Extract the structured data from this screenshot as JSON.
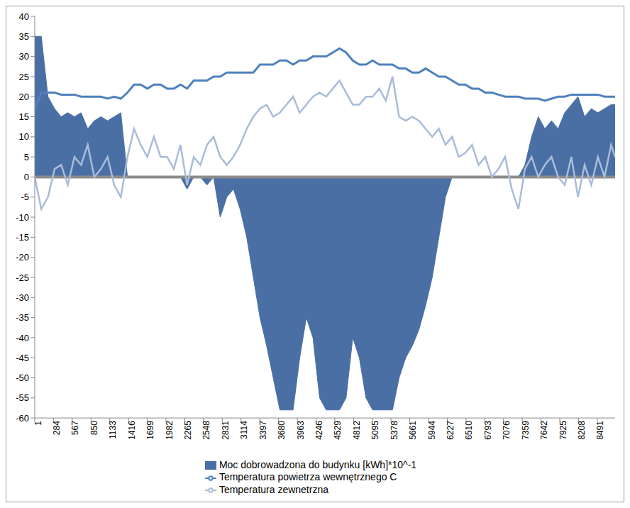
{
  "chart_data": {
    "type": "line",
    "grid": false,
    "legend": "bottom",
    "xlim": [
      1,
      8760
    ],
    "xticks": [
      1,
      284,
      567,
      850,
      1133,
      1416,
      1699,
      1982,
      2265,
      2548,
      2831,
      3114,
      3397,
      3680,
      3963,
      4246,
      4529,
      4812,
      5095,
      5378,
      5661,
      5944,
      6227,
      6510,
      6793,
      7076,
      7359,
      7642,
      7925,
      8208,
      8491
    ],
    "ylim": [
      -60,
      40
    ],
    "yticks": [
      -60,
      -55,
      -50,
      -45,
      -40,
      -35,
      -30,
      -25,
      -20,
      -15,
      -10,
      -5,
      0,
      5,
      10,
      15,
      20,
      25,
      30,
      35,
      40
    ],
    "x": [
      1,
      100,
      200,
      300,
      400,
      500,
      600,
      700,
      800,
      900,
      1000,
      1100,
      1200,
      1300,
      1400,
      1500,
      1600,
      1700,
      1800,
      1900,
      2000,
      2100,
      2200,
      2300,
      2400,
      2500,
      2600,
      2700,
      2800,
      2900,
      3000,
      3100,
      3200,
      3300,
      3400,
      3500,
      3600,
      3700,
      3800,
      3900,
      4000,
      4100,
      4200,
      4300,
      4400,
      4500,
      4600,
      4700,
      4800,
      4900,
      5000,
      5100,
      5200,
      5300,
      5400,
      5500,
      5600,
      5700,
      5800,
      5900,
      6000,
      6100,
      6200,
      6300,
      6400,
      6500,
      6600,
      6700,
      6800,
      6900,
      7000,
      7100,
      7200,
      7300,
      7400,
      7500,
      7600,
      7700,
      7800,
      7900,
      8000,
      8100,
      8200,
      8300,
      8400,
      8500,
      8600,
      8700,
      8760
    ],
    "series": [
      {
        "name": "Moc dobrowadzona do budynku [kWh]*10^-1",
        "type": "area",
        "color": "#4a6fa5",
        "values": [
          35,
          35,
          20,
          17,
          15,
          16,
          15,
          16,
          12,
          14,
          15,
          14,
          15,
          16,
          0,
          0,
          0,
          0,
          0,
          0,
          0,
          0,
          0,
          -3,
          0,
          0,
          -2,
          0,
          -10,
          -5,
          -3,
          -8,
          -15,
          -25,
          -35,
          -42,
          -50,
          -58,
          -58,
          -58,
          -45,
          -35,
          -40,
          -55,
          -58,
          -58,
          -58,
          -55,
          -40,
          -45,
          -55,
          -58,
          -58,
          -58,
          -58,
          -50,
          -45,
          -42,
          -38,
          -32,
          -25,
          -15,
          -5,
          0,
          0,
          0,
          0,
          0,
          0,
          0,
          0,
          0,
          0,
          0,
          3,
          10,
          15,
          12,
          14,
          12,
          16,
          18,
          20,
          15,
          17,
          16,
          17,
          18,
          18
        ]
      },
      {
        "name": "Temperatura powietrza wewnętrznego C",
        "type": "line",
        "color": "#4f81bd",
        "values": [
          17,
          21,
          21,
          21,
          20.5,
          20.5,
          20.5,
          20,
          20,
          20,
          20,
          19.5,
          20,
          19.5,
          21,
          23,
          23,
          22,
          23,
          23,
          22,
          22,
          23,
          22,
          24,
          24,
          24,
          25,
          25,
          26,
          26,
          26,
          26,
          26,
          28,
          28,
          28,
          29,
          29,
          28,
          29,
          29,
          30,
          30,
          30,
          31,
          32,
          31,
          29,
          28,
          28,
          29,
          28,
          28,
          28,
          27,
          27,
          26,
          26,
          27,
          26,
          25,
          25,
          24,
          23,
          23,
          22,
          22,
          21,
          21,
          20.5,
          20,
          20,
          20,
          19.5,
          19.5,
          19.5,
          19,
          19.5,
          20,
          20,
          20.5,
          20.5,
          20.5,
          20.5,
          20.5,
          20,
          20,
          20
        ]
      },
      {
        "name": "Temperatura zewnetrzna",
        "type": "line",
        "color": "#a9bcd9",
        "values": [
          0,
          -8,
          -5,
          2,
          3,
          -2,
          5,
          3,
          8,
          0,
          2,
          5,
          -2,
          -5,
          5,
          12,
          8,
          5,
          10,
          5,
          5,
          2,
          8,
          -2,
          5,
          3,
          8,
          10,
          5,
          3,
          5,
          8,
          12,
          15,
          17,
          18,
          15,
          16,
          18,
          20,
          16,
          18,
          20,
          21,
          20,
          22,
          24,
          21,
          18,
          18,
          20,
          20,
          22,
          19,
          25,
          15,
          14,
          15,
          14,
          12,
          10,
          12,
          8,
          10,
          5,
          6,
          8,
          3,
          5,
          0,
          2,
          5,
          -3,
          -8,
          2,
          5,
          0,
          3,
          5,
          0,
          -2,
          5,
          -5,
          3,
          -2,
          5,
          0,
          8,
          5
        ]
      }
    ]
  }
}
